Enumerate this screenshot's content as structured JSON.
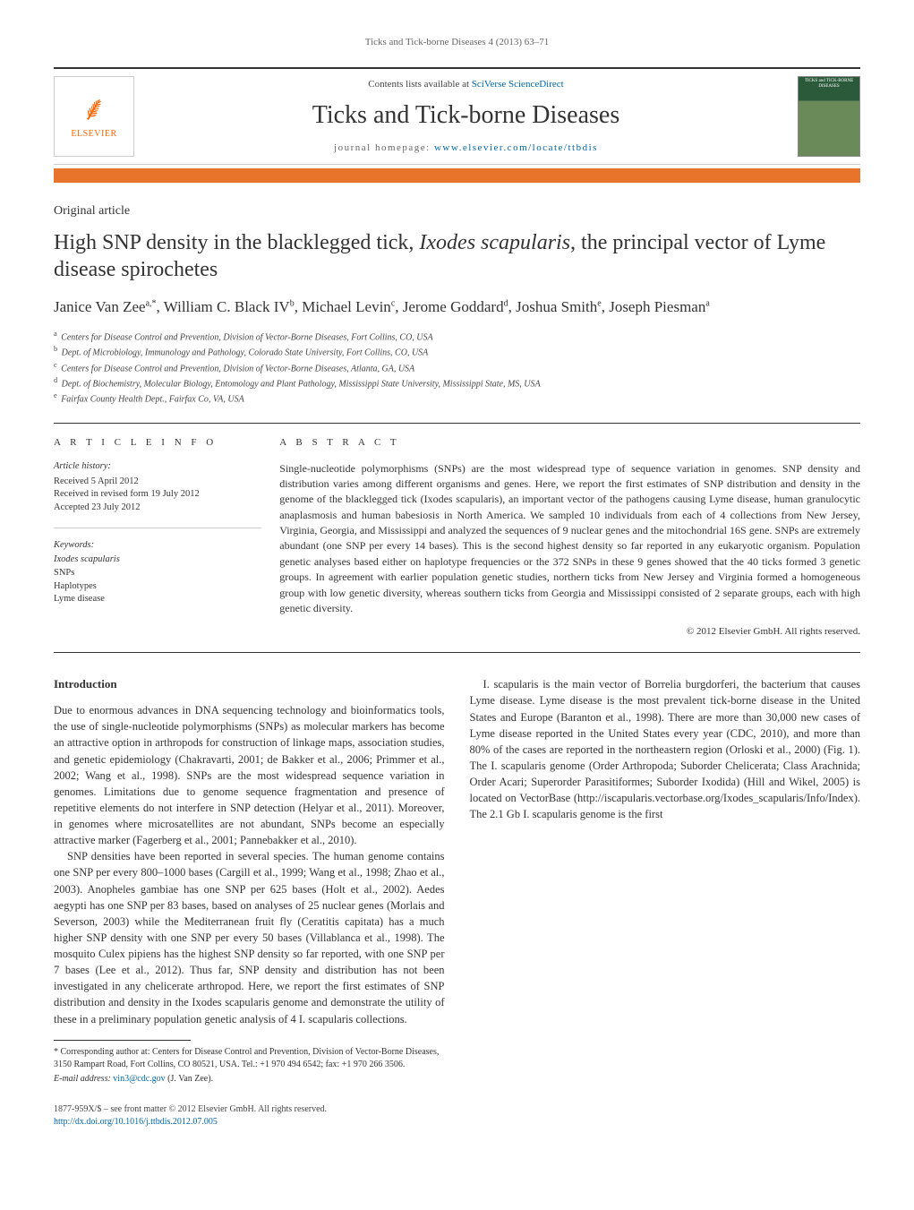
{
  "running_head": "Ticks and Tick-borne Diseases 4 (2013) 63–71",
  "masthead": {
    "publisher_name": "ELSEVIER",
    "contents_prefix": "Contents lists available at ",
    "contents_link": "SciVerse ScienceDirect",
    "journal_title": "Ticks and Tick-borne Diseases",
    "homepage_prefix": "journal homepage: ",
    "homepage_url": "www.elsevier.com/locate/ttbdis",
    "cover_text": "TICKS and TICK-BORNE DISEASES"
  },
  "article": {
    "type": "Original article",
    "title_pre": "High SNP density in the blacklegged tick, ",
    "title_italic": "Ixodes scapularis",
    "title_post": ", the principal vector of Lyme disease spirochetes",
    "authors_html": "Janice Van Zee<sup>a,*</sup>, William C. Black IV<sup>b</sup>, Michael Levin<sup>c</sup>, Jerome Goddard<sup>d</sup>, Joshua Smith<sup>e</sup>, Joseph Piesman<sup>a</sup>",
    "affiliations": [
      "Centers for Disease Control and Prevention, Division of Vector-Borne Diseases, Fort Collins, CO, USA",
      "Dept. of Microbiology, Immunology and Pathology, Colorado State University, Fort Collins, CO, USA",
      "Centers for Disease Control and Prevention, Division of Vector-Borne Diseases, Atlanta, GA, USA",
      "Dept. of Biochemistry, Molecular Biology, Entomology and Plant Pathology, Mississippi State University, Mississippi State, MS, USA",
      "Fairfax County Health Dept., Fairfax Co, VA, USA"
    ],
    "aff_markers": [
      "a",
      "b",
      "c",
      "d",
      "e"
    ]
  },
  "info": {
    "label": "A R T I C L E   I N F O",
    "history_heading": "Article history:",
    "history": [
      "Received 5 April 2012",
      "Received in revised form 19 July 2012",
      "Accepted 23 July 2012"
    ],
    "keywords_heading": "Keywords:",
    "keywords": [
      "Ixodes scapularis",
      "SNPs",
      "Haplotypes",
      "Lyme disease"
    ]
  },
  "abstract": {
    "label": "A B S T R A C T",
    "text": "Single-nucleotide polymorphisms (SNPs) are the most widespread type of sequence variation in genomes. SNP density and distribution varies among different organisms and genes. Here, we report the first estimates of SNP distribution and density in the genome of the blacklegged tick (Ixodes scapularis), an important vector of the pathogens causing Lyme disease, human granulocytic anaplasmosis and human babesiosis in North America. We sampled 10 individuals from each of 4 collections from New Jersey, Virginia, Georgia, and Mississippi and analyzed the sequences of 9 nuclear genes and the mitochondrial 16S gene. SNPs are extremely abundant (one SNP per every 14 bases). This is the second highest density so far reported in any eukaryotic organism. Population genetic analyses based either on haplotype frequencies or the 372 SNPs in these 9 genes showed that the 40 ticks formed 3 genetic groups. In agreement with earlier population genetic studies, northern ticks from New Jersey and Virginia formed a homogeneous group with low genetic diversity, whereas southern ticks from Georgia and Mississippi consisted of 2 separate groups, each with high genetic diversity.",
    "copyright": "© 2012 Elsevier GmbH. All rights reserved."
  },
  "body": {
    "heading": "Introduction",
    "p1": "Due to enormous advances in DNA sequencing technology and bioinformatics tools, the use of single-nucleotide polymorphisms (SNPs) as molecular markers has become an attractive option in arthropods for construction of linkage maps, association studies, and genetic epidemiology (Chakravarti, 2001; de Bakker et al., 2006; Primmer et al., 2002; Wang et al., 1998). SNPs are the most widespread sequence variation in genomes. Limitations due to genome sequence fragmentation and presence of repetitive elements do not interfere in SNP detection (Helyar et al., 2011). Moreover, in genomes where microsatellites are not abundant, SNPs become an especially attractive marker (Fagerberg et al., 2001; Pannebakker et al., 2010).",
    "p2": "SNP densities have been reported in several species. The human genome contains one SNP per every 800–1000 bases (Cargill et al., 1999; Wang et al., 1998; Zhao et al., 2003). Anopheles gambiae has one SNP per 625 bases (Holt et al., 2002). Aedes aegypti has one SNP per 83 bases, based on analyses of 25 nuclear genes (Morlais and Severson, 2003) while the Mediterranean fruit fly (Ceratitis capitata) has a much higher SNP density with one SNP per every 50 bases (Villablanca et al., 1998). The mosquito Culex pipiens has the highest SNP density so far reported, with one SNP per 7 bases (Lee et al., 2012). Thus far, SNP density and distribution has not been investigated in any chelicerate arthropod. Here, we report the first estimates of SNP distribution and density in the Ixodes scapularis genome and demonstrate the utility of these in a preliminary population genetic analysis of 4 I. scapularis collections.",
    "p3": "I. scapularis is the main vector of Borrelia burgdorferi, the bacterium that causes Lyme disease. Lyme disease is the most prevalent tick-borne disease in the United States and Europe (Baranton et al., 1998). There are more than 30,000 new cases of Lyme disease reported in the United States every year (CDC, 2010), and more than 80% of the cases are reported in the northeastern region (Orloski et al., 2000) (Fig. 1). The I. scapularis genome (Order Arthropoda; Suborder Chelicerata; Class Arachnida; Order Acari; Superorder Parasitiformes; Suborder Ixodida) (Hill and Wikel, 2005) is located on VectorBase (http://iscapularis.vectorbase.org/Ixodes_scapularis/Info/Index). The 2.1 Gb I. scapularis genome is the first"
  },
  "footnotes": {
    "corr": "* Corresponding author at: Centers for Disease Control and Prevention, Division of Vector-Borne Diseases, 3150 Rampart Road, Fort Collins, CO 80521, USA. Tel.: +1 970 494 6542; fax: +1 970 266 3506.",
    "email_label": "E-mail address: ",
    "email": "vin3@cdc.gov",
    "email_who": " (J. Van Zee)."
  },
  "footer": {
    "line1": "1877-959X/$ – see front matter © 2012 Elsevier GmbH. All rights reserved.",
    "doi": "http://dx.doi.org/10.1016/j.ttbdis.2012.07.005"
  },
  "colors": {
    "accent": "#e8742c",
    "link": "#0066aa",
    "publisher": "#ff6600"
  }
}
